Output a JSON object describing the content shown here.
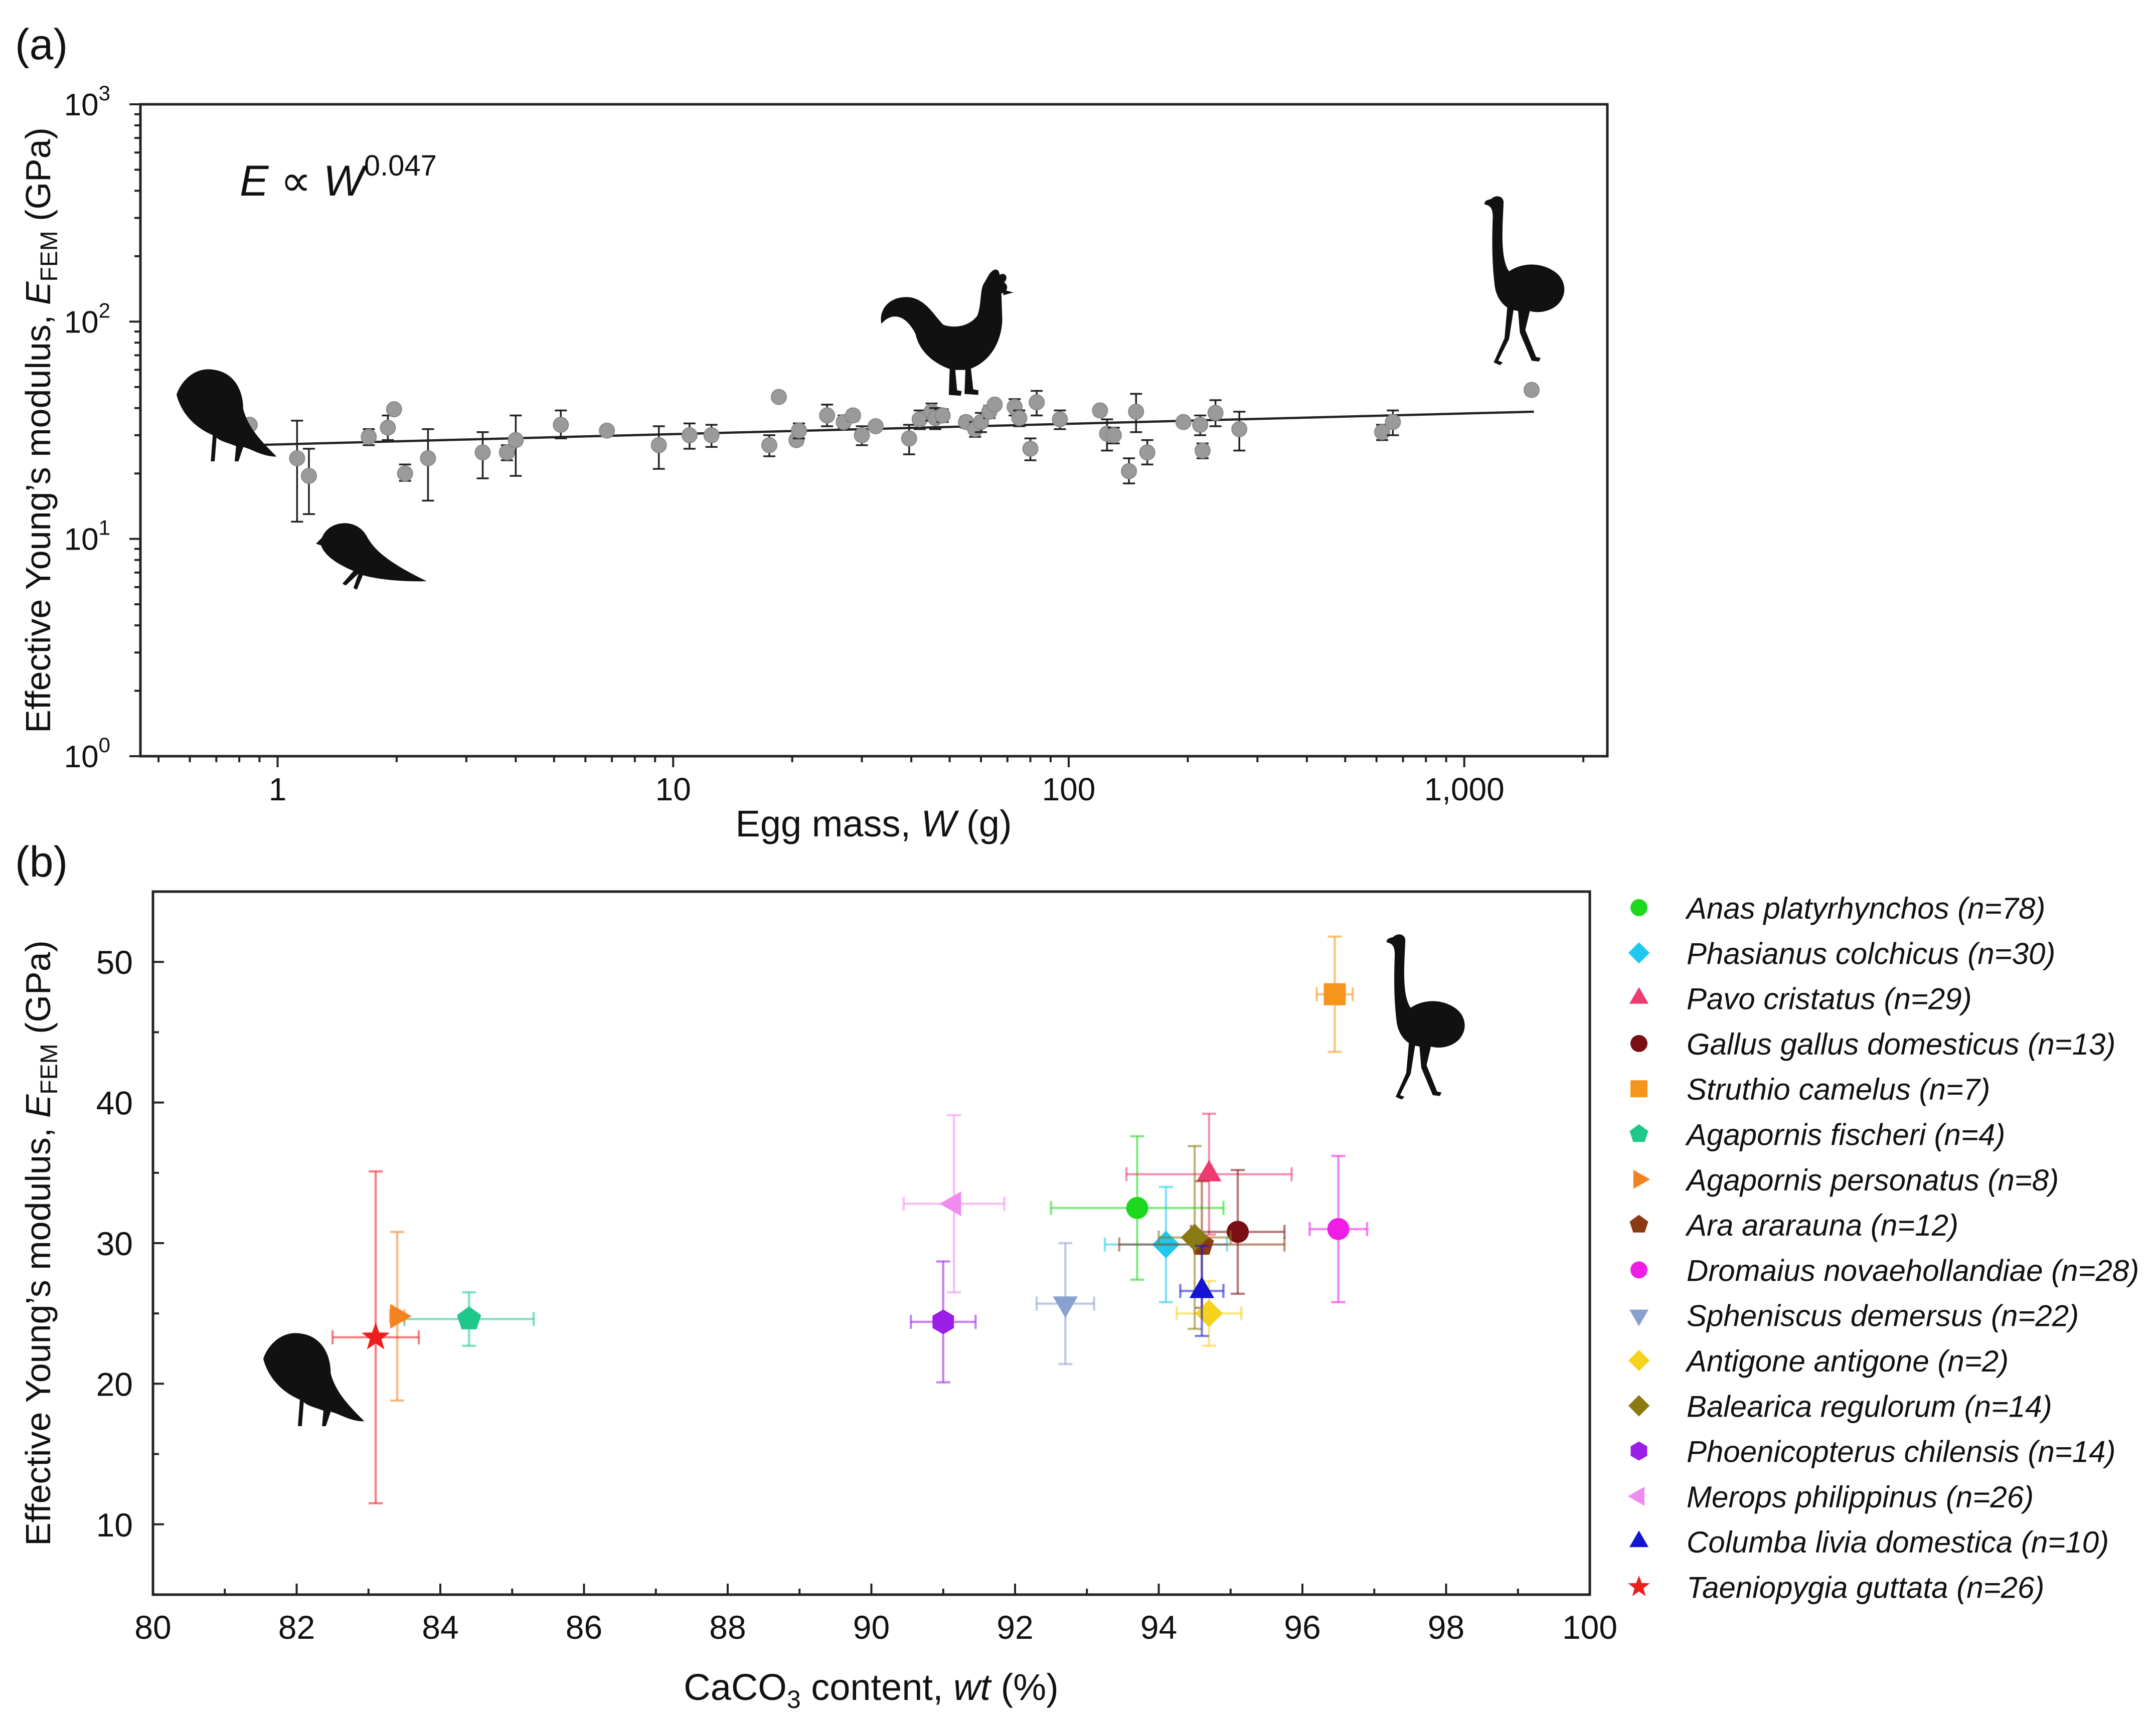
{
  "chart_data": [
    {
      "panel": "(a)",
      "type": "scatter",
      "xscale": "log",
      "yscale": "log",
      "xlabel": "Egg mass, W (g)",
      "xlabel_main": "Egg mass, ",
      "xlabel_var": "W",
      "xlabel_unit": " (g)",
      "ylabel": "Effective Young's modulus, E_FEM (GPa)",
      "ylabel_main": "Effective Young’s modulus, ",
      "ylabel_var": "E",
      "ylabel_sub": "FEM",
      "ylabel_unit": " (GPa)",
      "xlim": [
        0.45,
        2300
      ],
      "ylim": [
        1,
        1000
      ],
      "xticks": [
        1,
        10,
        100,
        1000
      ],
      "xtick_labels": [
        "1",
        "10",
        "100",
        "1,000"
      ],
      "yticks": [
        1,
        10,
        100,
        1000
      ],
      "ytick_labels": [
        {
          "base": "10",
          "exp": "0"
        },
        {
          "base": "10",
          "exp": "1"
        },
        {
          "base": "10",
          "exp": "2"
        },
        {
          "base": "10",
          "exp": "3"
        }
      ],
      "annotation": {
        "lhs": "E",
        "op": " ∝ ",
        "rhs": "W",
        "exp": "0.047"
      },
      "fit": {
        "exponent": 0.047,
        "x_range": [
          0.85,
          1500
        ],
        "y_start": 27,
        "y_end": 38.5
      },
      "marker_color": "#9a9a9a",
      "points": [
        {
          "x": 0.85,
          "y": 33.5,
          "lo": 32.0,
          "hi": 35.0
        },
        {
          "x": 1.12,
          "y": 23.5,
          "lo": 12.0,
          "hi": 35.0
        },
        {
          "x": 1.2,
          "y": 19.5,
          "lo": 13.0,
          "hi": 26.0
        },
        {
          "x": 1.7,
          "y": 29.5,
          "lo": 27.0,
          "hi": 32.0
        },
        {
          "x": 1.9,
          "y": 32.5,
          "lo": 28.5,
          "hi": 37.0
        },
        {
          "x": 1.97,
          "y": 39.5,
          "lo": 38.0,
          "hi": 41.0
        },
        {
          "x": 2.1,
          "y": 20.0,
          "lo": 18.5,
          "hi": 22.0
        },
        {
          "x": 2.4,
          "y": 23.5,
          "lo": 15.0,
          "hi": 32.0
        },
        {
          "x": 3.3,
          "y": 25.0,
          "lo": 19.0,
          "hi": 31.0
        },
        {
          "x": 3.8,
          "y": 25.0,
          "lo": 23.0,
          "hi": 27.0
        },
        {
          "x": 4.0,
          "y": 28.5,
          "lo": 19.5,
          "hi": 37.0
        },
        {
          "x": 5.2,
          "y": 33.5,
          "lo": 29.0,
          "hi": 39.0
        },
        {
          "x": 6.8,
          "y": 31.5,
          "lo": 30.5,
          "hi": 32.5
        },
        {
          "x": 9.2,
          "y": 27.0,
          "lo": 21.0,
          "hi": 33.0
        },
        {
          "x": 11.0,
          "y": 30.0,
          "lo": 26.0,
          "hi": 34.0
        },
        {
          "x": 12.5,
          "y": 30.0,
          "lo": 26.5,
          "hi": 33.5
        },
        {
          "x": 17.5,
          "y": 27.0,
          "lo": 24.0,
          "hi": 30.0
        },
        {
          "x": 18.5,
          "y": 45.0,
          "lo": 43.5,
          "hi": 46.5
        },
        {
          "x": 20.5,
          "y": 28.5,
          "lo": 27.0,
          "hi": 30.0
        },
        {
          "x": 20.8,
          "y": 31.5,
          "lo": 29.0,
          "hi": 34.0
        },
        {
          "x": 24.5,
          "y": 37.0,
          "lo": 33.0,
          "hi": 41.5
        },
        {
          "x": 27.0,
          "y": 34.5,
          "lo": 32.5,
          "hi": 37.0
        },
        {
          "x": 28.5,
          "y": 37.0,
          "lo": 35.0,
          "hi": 39.0
        },
        {
          "x": 30.0,
          "y": 30.0,
          "lo": 27.0,
          "hi": 33.0
        },
        {
          "x": 32.5,
          "y": 33.0,
          "lo": 31.5,
          "hi": 34.5
        },
        {
          "x": 39.5,
          "y": 29.0,
          "lo": 24.5,
          "hi": 33.5
        },
        {
          "x": 42.0,
          "y": 35.5,
          "lo": 32.0,
          "hi": 39.0
        },
        {
          "x": 45.0,
          "y": 38.5,
          "lo": 35.0,
          "hi": 42.0
        },
        {
          "x": 46.0,
          "y": 36.0,
          "lo": 32.0,
          "hi": 40.0
        },
        {
          "x": 48.0,
          "y": 37.0,
          "lo": 34.5,
          "hi": 39.5
        },
        {
          "x": 55.0,
          "y": 34.5,
          "lo": 32.5,
          "hi": 36.5
        },
        {
          "x": 58.0,
          "y": 32.0,
          "lo": 29.5,
          "hi": 34.5
        },
        {
          "x": 60.0,
          "y": 34.5,
          "lo": 31.0,
          "hi": 38.0
        },
        {
          "x": 63.0,
          "y": 38.5,
          "lo": 36.0,
          "hi": 41.0
        },
        {
          "x": 65.0,
          "y": 41.5,
          "lo": 40.0,
          "hi": 43.5
        },
        {
          "x": 73.0,
          "y": 40.5,
          "lo": 37.0,
          "hi": 44.0
        },
        {
          "x": 75.0,
          "y": 36.0,
          "lo": 33.0,
          "hi": 39.0
        },
        {
          "x": 80.0,
          "y": 26.0,
          "lo": 23.0,
          "hi": 29.0
        },
        {
          "x": 83.0,
          "y": 42.5,
          "lo": 37.0,
          "hi": 48.0
        },
        {
          "x": 95.0,
          "y": 35.5,
          "lo": 32.0,
          "hi": 39.0
        },
        {
          "x": 120.0,
          "y": 39.0,
          "lo": 37.0,
          "hi": 41.0
        },
        {
          "x": 125.0,
          "y": 30.5,
          "lo": 25.5,
          "hi": 35.5
        },
        {
          "x": 130.0,
          "y": 30.0,
          "lo": 27.5,
          "hi": 32.5
        },
        {
          "x": 142.0,
          "y": 20.5,
          "lo": 18.0,
          "hi": 23.5
        },
        {
          "x": 148.0,
          "y": 38.5,
          "lo": 31.0,
          "hi": 46.5
        },
        {
          "x": 158.0,
          "y": 25.0,
          "lo": 22.0,
          "hi": 28.5
        },
        {
          "x": 195.0,
          "y": 34.5,
          "lo": 33.5,
          "hi": 36.0
        },
        {
          "x": 215.0,
          "y": 33.5,
          "lo": 30.0,
          "hi": 37.0
        },
        {
          "x": 218.0,
          "y": 25.5,
          "lo": 23.5,
          "hi": 27.5
        },
        {
          "x": 235.0,
          "y": 38.0,
          "lo": 33.0,
          "hi": 43.5
        },
        {
          "x": 270.0,
          "y": 32.0,
          "lo": 25.5,
          "hi": 38.5
        },
        {
          "x": 620.0,
          "y": 31.0,
          "lo": 28.5,
          "hi": 33.5
        },
        {
          "x": 660.0,
          "y": 34.5,
          "lo": 30.0,
          "hi": 39.0
        },
        {
          "x": 1480.0,
          "y": 48.5,
          "lo": 46.0,
          "hi": 51.0
        }
      ]
    },
    {
      "panel": "(b)",
      "type": "scatter",
      "xlabel": "CaCO3 content, wt (%)",
      "xlabel_pre": "CaCO",
      "xlabel_sub": "3",
      "xlabel_mid": " content, ",
      "xlabel_var": "wt",
      "xlabel_unit": " (%)",
      "ylabel": "Effective Young's modulus, E_FEM (GPa)",
      "ylabel_main": "Effective Young’s modulus, ",
      "ylabel_var": "E",
      "ylabel_sub": "FEM",
      "ylabel_unit": " (GPa)",
      "xlim": [
        80,
        100
      ],
      "ylim": [
        5,
        55
      ],
      "xticks": [
        80,
        82,
        84,
        86,
        88,
        90,
        92,
        94,
        96,
        98,
        100
      ],
      "xtick_labels": [
        "80",
        "82",
        "84",
        "86",
        "88",
        "90",
        "92",
        "94",
        "96",
        "98",
        "100"
      ],
      "yticks": [
        10,
        20,
        30,
        40,
        50
      ],
      "ytick_labels": [
        "10",
        "20",
        "30",
        "40",
        "50"
      ],
      "series": [
        {
          "name": "Anas platyrhynchos (n=78)",
          "marker": "circle",
          "color": "#1ed81e",
          "x": 93.7,
          "y": 32.5,
          "xerr": 1.2,
          "yerr": 5.1
        },
        {
          "name": "Phasianus colchicus (n=30)",
          "marker": "diamond",
          "color": "#1ec8ee",
          "x": 94.1,
          "y": 29.9,
          "xerr": 0.85,
          "yerr": 4.1
        },
        {
          "name": "Pavo cristatus (n=29)",
          "marker": "triangle-up",
          "color": "#ee3a6e",
          "x": 94.7,
          "y": 34.9,
          "xerr": 1.15,
          "yerr": 4.3
        },
        {
          "name": "Gallus gallus domesticus (n=13)",
          "marker": "circle",
          "color": "#7a0e14",
          "x": 95.1,
          "y": 30.8,
          "xerr": 0.65,
          "yerr": 4.4
        },
        {
          "name": "Struthio camelus (n=7)",
          "marker": "square",
          "color": "#f7941e",
          "x": 96.45,
          "y": 47.7,
          "xerr": 0.25,
          "yerr": 4.1
        },
        {
          "name": "Agapornis fischeri (n=4)",
          "marker": "pentagon",
          "color": "#1ec88a",
          "x": 84.4,
          "y": 24.6,
          "xerr": 0.9,
          "yerr": 1.9
        },
        {
          "name": "Agapornis personatus (n=8)",
          "marker": "triangle-right",
          "color": "#f58220",
          "x": 83.4,
          "y": 24.8,
          "xerr": 0.1,
          "yerr": 6.0
        },
        {
          "name": "Ara ararauna (n=12)",
          "marker": "pentagon",
          "color": "#8b3a14",
          "x": 94.6,
          "y": 29.9,
          "xerr": 1.15,
          "yerr": 4.5
        },
        {
          "name": "Dromaius novaehollandiae (n=28)",
          "marker": "circle",
          "color": "#ee1ee6",
          "x": 96.5,
          "y": 31.0,
          "xerr": 0.4,
          "yerr": 5.2
        },
        {
          "name": "Spheniscus demersus (n=22)",
          "marker": "triangle-down",
          "color": "#8aa0d0",
          "x": 92.7,
          "y": 25.7,
          "xerr": 0.4,
          "yerr": 4.3
        },
        {
          "name": "Antigone antigone (n=2)",
          "marker": "diamond",
          "color": "#f5d21e",
          "x": 94.7,
          "y": 25.0,
          "xerr": 0.45,
          "yerr": 2.3
        },
        {
          "name": "Balearica regulorum (n=14)",
          "marker": "diamond",
          "color": "#8a7a14",
          "x": 94.5,
          "y": 30.4,
          "xerr": 0.5,
          "yerr": 6.5
        },
        {
          "name": "Phoenicopterus chilensis (n=14)",
          "marker": "hexagon",
          "color": "#9a1ee6",
          "x": 91.0,
          "y": 24.4,
          "xerr": 0.45,
          "yerr": 4.3
        },
        {
          "name": "Merops philippinus (n=26)",
          "marker": "triangle-left",
          "color": "#f08cf0",
          "x": 91.15,
          "y": 32.8,
          "xerr": 0.7,
          "yerr": 6.3
        },
        {
          "name": "Columba livia domestica (n=10)",
          "marker": "triangle-up",
          "color": "#1414d2",
          "x": 94.6,
          "y": 26.6,
          "xerr": 0.3,
          "yerr": 3.2
        },
        {
          "name": "Taeniopygia guttata (n=26)",
          "marker": "star",
          "color": "#ee1e1e",
          "x": 83.1,
          "y": 23.3,
          "xerr": 0.6,
          "yerr": 11.8
        }
      ]
    }
  ]
}
